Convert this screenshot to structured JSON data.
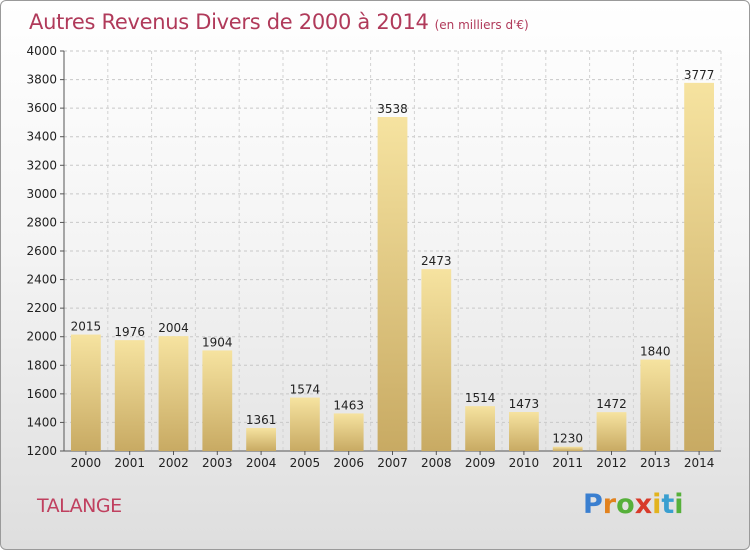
{
  "chart_data": {
    "type": "bar",
    "title": "Autres Revenus Divers de 2000 à 2014",
    "subtitle": "(en milliers d'€)",
    "categories": [
      "2000",
      "2001",
      "2002",
      "2003",
      "2004",
      "2005",
      "2006",
      "2007",
      "2008",
      "2009",
      "2010",
      "2011",
      "2012",
      "2013",
      "2014"
    ],
    "values": [
      2015,
      1976,
      2004,
      1904,
      1361,
      1574,
      1463,
      3538,
      2473,
      1514,
      1473,
      1230,
      1472,
      1840,
      3777
    ],
    "ylim": [
      1200,
      4000
    ],
    "yticks": [
      1200,
      1400,
      1600,
      1800,
      2000,
      2200,
      2400,
      2600,
      2800,
      3000,
      3200,
      3400,
      3600,
      3800,
      4000
    ],
    "grid": true,
    "colors": {
      "bar_top": "#f6e3a0",
      "bar_bottom": "#c8aa63",
      "title": "#b03a5a"
    }
  },
  "footer": {
    "town": "TALANGE",
    "logo_letters": [
      {
        "ch": "P",
        "color": "#3a7fd0"
      },
      {
        "ch": "r",
        "color": "#e2821e"
      },
      {
        "ch": "o",
        "color": "#56b03a"
      },
      {
        "ch": "x",
        "color": "#d83a2a"
      },
      {
        "ch": "i",
        "color": "#e2b31e"
      },
      {
        "ch": "t",
        "color": "#3a9fd0"
      },
      {
        "ch": "i",
        "color": "#56b03a"
      }
    ]
  }
}
